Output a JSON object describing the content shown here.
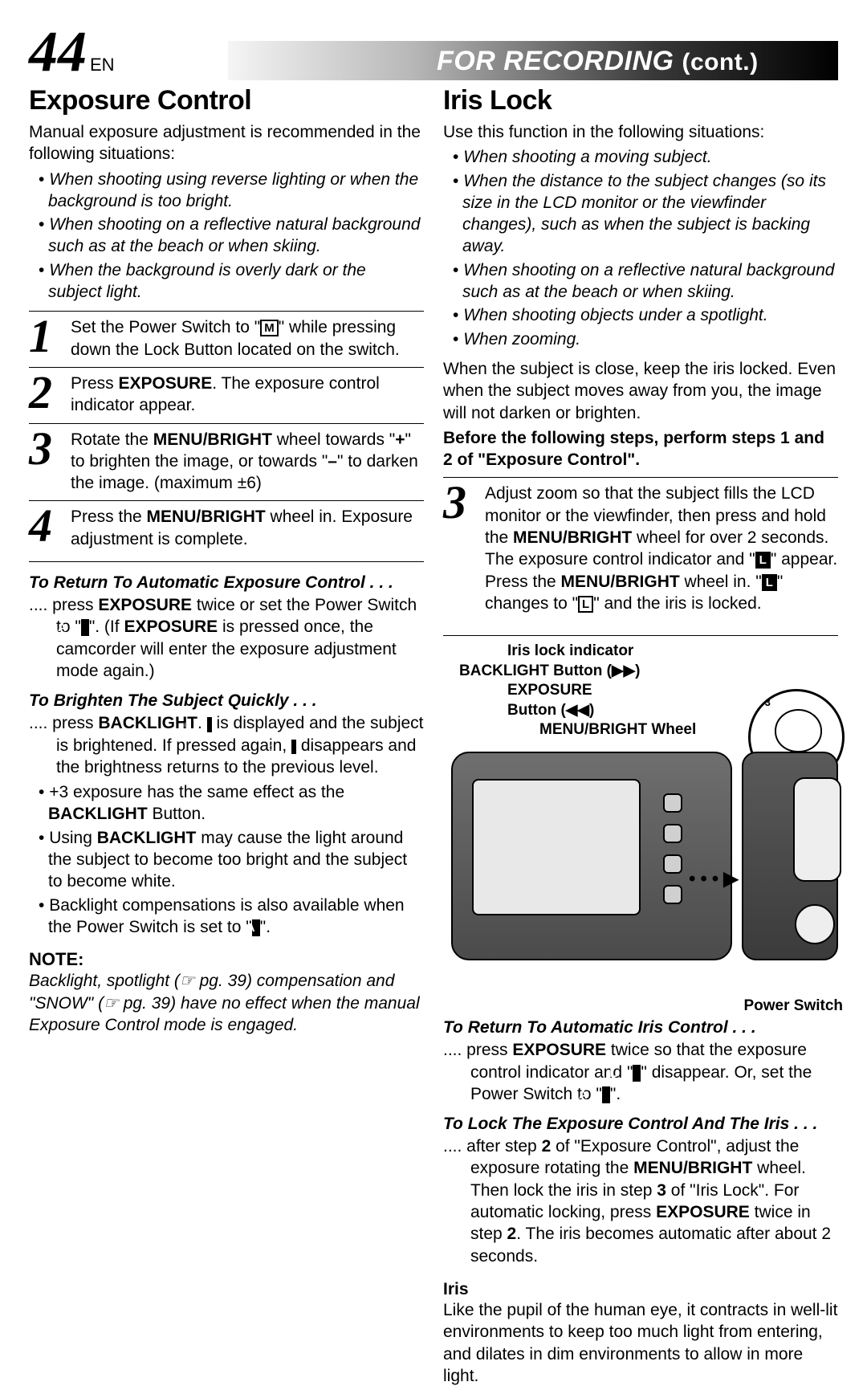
{
  "page": {
    "num": "44",
    "lang": "EN",
    "banner": "FOR RECORDING",
    "banner_cont": "(cont.)"
  },
  "left": {
    "title": "Exposure Control",
    "intro": "Manual exposure adjustment is recommended in the following situations:",
    "bullets": [
      "When shooting using reverse lighting or when the background is too bright.",
      "When shooting on a reflective natural background such as at the beach or when skiing.",
      "When the background is overly dark or the subject light."
    ],
    "steps": [
      {
        "n": "1",
        "t_a": "Set the Power Switch to \"",
        "g1": "M",
        "t_b": "\" while pressing down the Lock Button located on the switch."
      },
      {
        "n": "2",
        "t_a": "Press ",
        "b1": "EXPOSURE",
        "t_b": ". The exposure control indicator appear."
      },
      {
        "n": "3",
        "t_a": "Rotate the ",
        "b1": "MENU/BRIGHT",
        "t_b": " wheel towards \"",
        "b2": "+",
        "t_c": "\" to brighten the image, or towards \"",
        "b3": "–",
        "t_d": "\" to darken the image. (maximum ±6)"
      },
      {
        "n": "4",
        "t_a": "Press the ",
        "b1": "MENU/BRIGHT",
        "t_b": " wheel in. Exposure adjustment is complete."
      }
    ],
    "ret_h": "To Return To Automatic Exposure Control . . .",
    "ret_body_a": ".... press ",
    "ret_b1": "EXPOSURE",
    "ret_body_b": " twice or set the Power Switch to \"",
    "ret_g1": "A",
    "ret_body_c": "\". (If ",
    "ret_b2": "EXPOSURE",
    "ret_body_d": " is pressed once, the camcorder will enter the exposure adjustment mode again.)",
    "bri_h": "To Brighten The Subject Quickly . . .",
    "bri_a": ".... press ",
    "bri_b1": "BACKLIGHT",
    "bri_b": ". ",
    "bri_c": " is displayed and the subject is brightened. If pressed again, ",
    "bri_d": " disappears and the brightness returns to the previous level.",
    "bri_bul": [
      "+3 exposure has the same effect as the <b>BACKLIGHT</b> Button.",
      "Using <b>BACKLIGHT</b> may cause the light around the subject to become too bright and the subject to become white.",
      "Backlight compensations is also available when the Power Switch is set to \"<span class='glyph inv'>A</span>\"."
    ],
    "note_h": "NOTE:",
    "note_body": "Backlight, spotlight (☞ pg. 39) compensation and \"SNOW\" (☞ pg. 39) have no effect when the manual Exposure Control mode is engaged."
  },
  "right": {
    "title": "Iris Lock",
    "intro": "Use this function in the following situations:",
    "bullets": [
      "When shooting a moving subject.",
      "When the distance to the subject changes (so its size in the LCD monitor or the viewfinder changes), such as when the subject is backing away.",
      "When shooting on a reflective natural background such as at the beach or when skiing.",
      "When shooting objects under a spotlight.",
      "When zooming."
    ],
    "after": "When the subject is close, keep the iris locked. Even when the subject moves away from you, the image will not darken or brighten.",
    "pre_steps": "Before the following steps, perform steps 1 and 2 of \"Exposure Control\".",
    "step3": {
      "n": "3",
      "a": "Adjust zoom so that the subject fills the LCD monitor or the viewfinder, then press and hold the ",
      "b1": "MENU/BRIGHT",
      "b": " wheel for over 2 seconds. The exposure control indicator and \"",
      "g1": "L",
      "c": "\" appear.",
      "d": "Press the ",
      "b2": "MENU/BRIGHT",
      "e": " wheel in. \"",
      "g2": "L",
      "f": "\" changes to \"",
      "g3": "L",
      "g": "\" and the iris is locked."
    },
    "labels": {
      "iris_ind": "Iris lock indicator",
      "backlight": "BACKLIGHT Button (▶▶)",
      "exposure": "EXPOSURE",
      "exposure2": "Button (◀◀)",
      "menu": "MENU/BRIGHT Wheel",
      "power": "Power Switch",
      "callout": "+3"
    },
    "ret_h": "To Return To Automatic Iris Control . . .",
    "ret_a": ".... press ",
    "ret_b1": "EXPOSURE",
    "ret_b": " twice so that the exposure control indicator and \"",
    "ret_g1": "L",
    "ret_c": "\" disappear. Or, set the Power Switch to \"",
    "ret_g2": "A",
    "ret_d": "\".",
    "lock_h": "To Lock The Exposure Control And The Iris . . .",
    "lock_a": ".... after step ",
    "lock_b1": "2",
    "lock_b": " of \"Exposure Control\", adjust the exposure rotating the ",
    "lock_b2": "MENU/BRIGHT",
    "lock_c": " wheel. Then lock the iris in step ",
    "lock_b3": "3",
    "lock_d": " of \"Iris Lock\". For automatic locking, press ",
    "lock_b4": "EXPOSURE",
    "lock_e": " twice in step ",
    "lock_b5": "2",
    "lock_f": ". The iris becomes automatic after about 2 seconds.",
    "iris_h": "Iris",
    "iris_body": "Like the pupil of the human eye, it contracts in well-lit environments to keep too much light from entering, and dilates in dim environments to allow in more light."
  }
}
